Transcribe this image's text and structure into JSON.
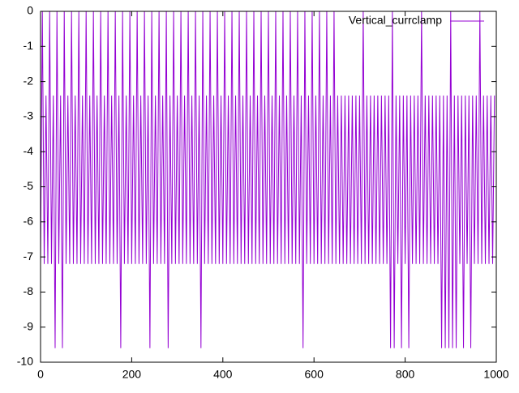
{
  "chart_data": {
    "type": "line",
    "x": [
      0,
      4,
      8,
      12,
      16,
      20,
      24,
      28,
      32,
      36,
      40,
      44,
      48,
      52,
      56,
      60,
      64,
      68,
      72,
      76,
      80,
      84,
      88,
      92,
      96,
      100,
      104,
      108,
      112,
      116,
      120,
      124,
      128,
      132,
      136,
      140,
      144,
      148,
      152,
      156,
      160,
      164,
      168,
      172,
      176,
      180,
      184,
      188,
      192,
      196,
      200,
      204,
      208,
      212,
      216,
      220,
      224,
      228,
      232,
      236,
      240,
      244,
      248,
      252,
      256,
      260,
      264,
      268,
      272,
      276,
      280,
      284,
      288,
      292,
      296,
      300,
      304,
      308,
      312,
      316,
      320,
      324,
      328,
      332,
      336,
      340,
      344,
      348,
      352,
      356,
      360,
      364,
      368,
      372,
      376,
      380,
      384,
      388,
      392,
      396,
      400,
      404,
      408,
      412,
      416,
      420,
      424,
      428,
      432,
      436,
      440,
      444,
      448,
      452,
      456,
      460,
      464,
      468,
      472,
      476,
      480,
      484,
      488,
      492,
      496,
      500,
      504,
      508,
      512,
      516,
      520,
      524,
      528,
      532,
      536,
      540,
      544,
      548,
      552,
      556,
      560,
      564,
      568,
      572,
      576,
      580,
      584,
      588,
      592,
      596,
      600,
      604,
      608,
      612,
      616,
      620,
      624,
      628,
      632,
      636,
      640,
      644,
      648,
      652,
      656,
      660,
      664,
      668,
      672,
      676,
      680,
      684,
      688,
      692,
      696,
      700,
      704,
      708,
      712,
      716,
      720,
      724,
      728,
      732,
      736,
      740,
      744,
      748,
      752,
      756,
      760,
      764,
      768,
      772,
      776,
      780,
      784,
      788,
      792,
      796,
      800,
      804,
      808,
      812,
      816,
      820,
      824,
      828,
      832,
      836,
      840,
      844,
      848,
      852,
      856,
      860,
      864,
      868,
      872,
      876,
      880,
      884,
      888,
      892,
      896,
      900,
      904,
      908,
      912,
      916,
      920,
      924,
      928,
      932,
      936,
      940,
      944,
      948,
      952,
      956,
      960,
      964,
      968,
      972,
      976,
      980,
      984,
      988,
      992,
      996
    ],
    "series": [
      {
        "name": "Vertical_currclamp",
        "color": "#9400d3",
        "values": [
          -7.2,
          0,
          -7.2,
          -2.4,
          -7.2,
          0,
          -7.2,
          -2.4,
          -9.6,
          0,
          -7.2,
          -2.4,
          -9.6,
          0,
          -7.2,
          -2.4,
          -7.2,
          0,
          -7.2,
          -2.4,
          -7.2,
          0,
          -7.2,
          -2.4,
          -7.2,
          0,
          -7.2,
          -2.4,
          -7.2,
          0,
          -7.2,
          -2.4,
          -7.2,
          0,
          -7.2,
          -2.4,
          -7.2,
          0,
          -7.2,
          -2.4,
          -7.2,
          0,
          -7.2,
          -2.4,
          -9.6,
          0,
          -7.2,
          -2.4,
          -7.2,
          0,
          -7.2,
          -2.4,
          -7.2,
          0,
          -7.2,
          -2.4,
          -7.2,
          0,
          -7.2,
          -2.4,
          -9.6,
          0,
          -7.2,
          -2.4,
          -7.2,
          0,
          -7.2,
          -2.4,
          -7.2,
          0,
          -9.6,
          -2.4,
          -7.2,
          0,
          -7.2,
          -2.4,
          -7.2,
          0,
          -7.2,
          -2.4,
          -7.2,
          0,
          -7.2,
          -2.4,
          -7.2,
          0,
          -7.2,
          -2.4,
          -9.6,
          0,
          -7.2,
          -2.4,
          -7.2,
          0,
          -7.2,
          -2.4,
          -7.2,
          0,
          -7.2,
          -2.4,
          -7.2,
          0,
          -7.2,
          -2.4,
          -7.2,
          0,
          -7.2,
          -2.4,
          -7.2,
          0,
          -7.2,
          -2.4,
          -7.2,
          0,
          -7.2,
          -2.4,
          -7.2,
          0,
          -7.2,
          -2.4,
          -7.2,
          0,
          -7.2,
          -2.4,
          -7.2,
          0,
          -7.2,
          -2.4,
          -7.2,
          0,
          -7.2,
          -2.4,
          -7.2,
          0,
          -7.2,
          -2.4,
          -7.2,
          0,
          -7.2,
          -2.4,
          -7.2,
          0,
          -7.2,
          -2.4,
          -9.6,
          0,
          -7.2,
          -2.4,
          -7.2,
          0,
          -7.2,
          -2.4,
          -7.2,
          0,
          -7.2,
          -2.4,
          -7.2,
          0,
          -7.2,
          -2.4,
          -7.2,
          0,
          -7.2,
          -2.4,
          -7.2,
          -2.4,
          -7.2,
          -2.4,
          -7.2,
          -2.4,
          -7.2,
          -2.4,
          -7.2,
          -2.4,
          -7.2,
          -2.4,
          -7.2,
          0,
          -7.2,
          -2.4,
          -7.2,
          -2.4,
          -7.2,
          -2.4,
          -7.2,
          -2.4,
          -7.2,
          -2.4,
          -7.2,
          -2.4,
          -7.2,
          -2.4,
          -9.6,
          0,
          -9.6,
          -2.4,
          -7.2,
          -2.4,
          -9.6,
          -2.4,
          -7.2,
          -2.4,
          -9.6,
          -2.4,
          -7.2,
          -2.4,
          -7.2,
          -2.4,
          -7.2,
          0,
          -7.2,
          -2.4,
          -7.2,
          -2.4,
          -7.2,
          -2.4,
          -7.2,
          -2.4,
          -7.2,
          -2.4,
          -9.6,
          -2.4,
          -9.6,
          -2.4,
          -9.6,
          0,
          -9.6,
          -2.4,
          -9.6,
          -2.4,
          -7.2,
          -2.4,
          -9.6,
          -2.4,
          -7.2,
          -2.4,
          -9.6,
          -2.4,
          -7.2,
          -2.4,
          -7.2,
          0,
          -7.2,
          -2.4,
          -7.2,
          -2.4,
          -7.2,
          -2.4,
          -7.2,
          -2.4
        ]
      }
    ],
    "xlim": [
      0,
      1000
    ],
    "xticks": [
      0,
      200,
      400,
      600,
      800,
      1000
    ],
    "ylim": [
      -10,
      0
    ],
    "yticks": [
      0,
      -1,
      -2,
      -3,
      -4,
      -5,
      -6,
      -7,
      -8,
      -9,
      -10
    ]
  }
}
